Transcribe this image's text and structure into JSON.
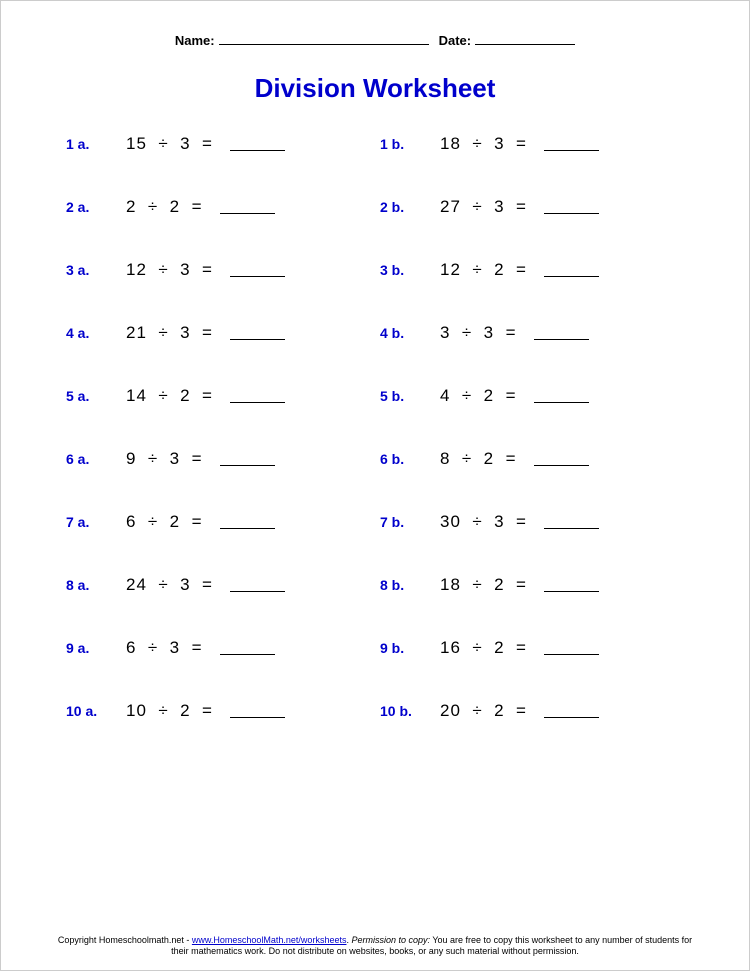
{
  "header": {
    "name_label": "Name:",
    "date_label": "Date:"
  },
  "title": {
    "text": "Division Worksheet",
    "color": "#0000cc"
  },
  "label_color": "#0000cc",
  "problems": [
    {
      "label_a": "1 a.",
      "a_dividend": 15,
      "a_divisor": 3,
      "label_b": "1 b.",
      "b_dividend": 18,
      "b_divisor": 3
    },
    {
      "label_a": "2 a.",
      "a_dividend": 2,
      "a_divisor": 2,
      "label_b": "2 b.",
      "b_dividend": 27,
      "b_divisor": 3
    },
    {
      "label_a": "3 a.",
      "a_dividend": 12,
      "a_divisor": 3,
      "label_b": "3 b.",
      "b_dividend": 12,
      "b_divisor": 2
    },
    {
      "label_a": "4 a.",
      "a_dividend": 21,
      "a_divisor": 3,
      "label_b": "4 b.",
      "b_dividend": 3,
      "b_divisor": 3
    },
    {
      "label_a": "5 a.",
      "a_dividend": 14,
      "a_divisor": 2,
      "label_b": "5 b.",
      "b_dividend": 4,
      "b_divisor": 2
    },
    {
      "label_a": "6 a.",
      "a_dividend": 9,
      "a_divisor": 3,
      "label_b": "6 b.",
      "b_dividend": 8,
      "b_divisor": 2
    },
    {
      "label_a": "7 a.",
      "a_dividend": 6,
      "a_divisor": 2,
      "label_b": "7 b.",
      "b_dividend": 30,
      "b_divisor": 3
    },
    {
      "label_a": "8 a.",
      "a_dividend": 24,
      "a_divisor": 3,
      "label_b": "8 b.",
      "b_dividend": 18,
      "b_divisor": 2
    },
    {
      "label_a": "9 a.",
      "a_dividend": 6,
      "a_divisor": 3,
      "label_b": "9 b.",
      "b_dividend": 16,
      "b_divisor": 2
    },
    {
      "label_a": "10 a.",
      "a_dividend": 10,
      "a_divisor": 2,
      "label_b": "10 b.",
      "b_dividend": 20,
      "b_divisor": 2
    }
  ],
  "footer": {
    "text1": "Copyright Homeschoolmath.net - ",
    "link_text": "www.HomeschoolMath.net/worksheets",
    "text2": ". ",
    "italic": "Permission to copy:",
    "text3": " You are free to copy this worksheet to any number of students for their mathematics work. Do not distribute on websites, books, or any such material without permission."
  }
}
